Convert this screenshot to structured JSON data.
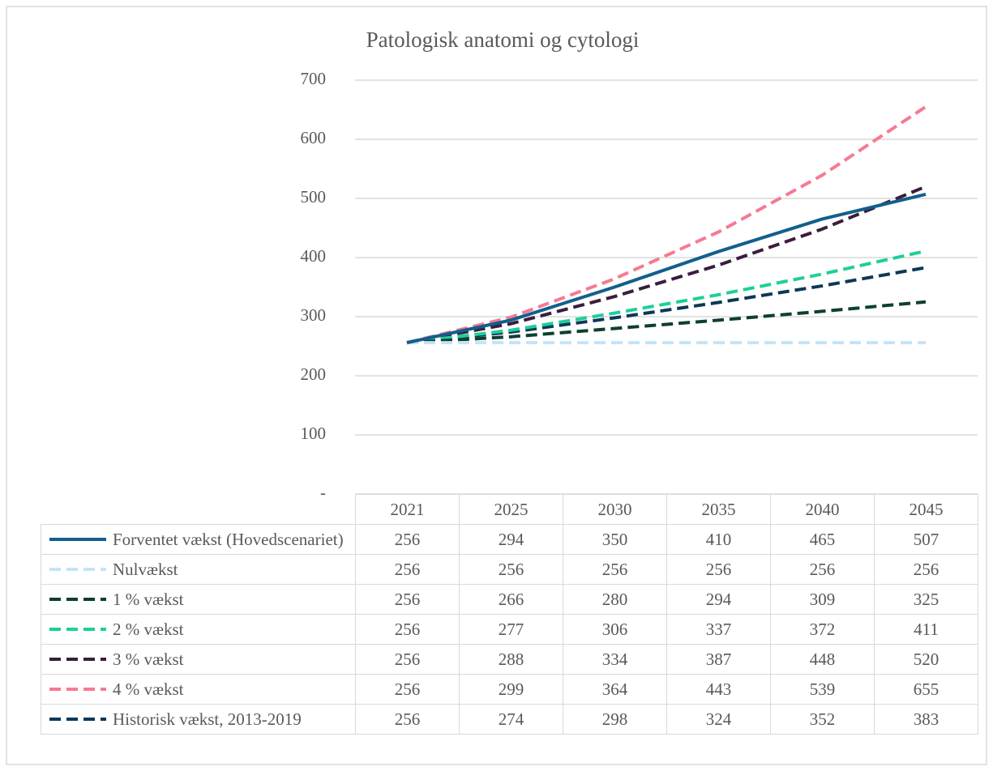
{
  "chart_data": {
    "type": "line",
    "title": "Patologisk anatomi og cytologi",
    "categories": [
      "2021",
      "2025",
      "2030",
      "2035",
      "2040",
      "2045"
    ],
    "series": [
      {
        "name": "Forventet vækst (Hovedscenariet)",
        "color": "#125f8c",
        "dashed": false,
        "values": [
          256,
          294,
          350,
          410,
          465,
          507
        ]
      },
      {
        "name": "Nulvækst",
        "color": "#c5e3f7",
        "dashed": true,
        "values": [
          256,
          256,
          256,
          256,
          256,
          256
        ]
      },
      {
        "name": "1 % vækst",
        "color": "#0d3f30",
        "dashed": true,
        "values": [
          256,
          266,
          280,
          294,
          309,
          325
        ]
      },
      {
        "name": "2 % vækst",
        "color": "#1ecf98",
        "dashed": true,
        "values": [
          256,
          277,
          306,
          337,
          372,
          411
        ]
      },
      {
        "name": "3 % vækst",
        "color": "#3b1d3d",
        "dashed": true,
        "values": [
          256,
          288,
          334,
          387,
          448,
          520
        ]
      },
      {
        "name": "4 % vækst",
        "color": "#f57a92",
        "dashed": true,
        "values": [
          256,
          299,
          364,
          443,
          539,
          655
        ]
      },
      {
        "name": "Historisk vækst, 2013-2019",
        "color": "#0c3857",
        "dashed": true,
        "values": [
          256,
          274,
          298,
          324,
          352,
          383
        ]
      }
    ],
    "ylim": [
      0,
      700
    ],
    "yticks": [
      {
        "value": 0,
        "label": "-"
      },
      100,
      200,
      300,
      400,
      500,
      600,
      700
    ],
    "grid": true
  }
}
